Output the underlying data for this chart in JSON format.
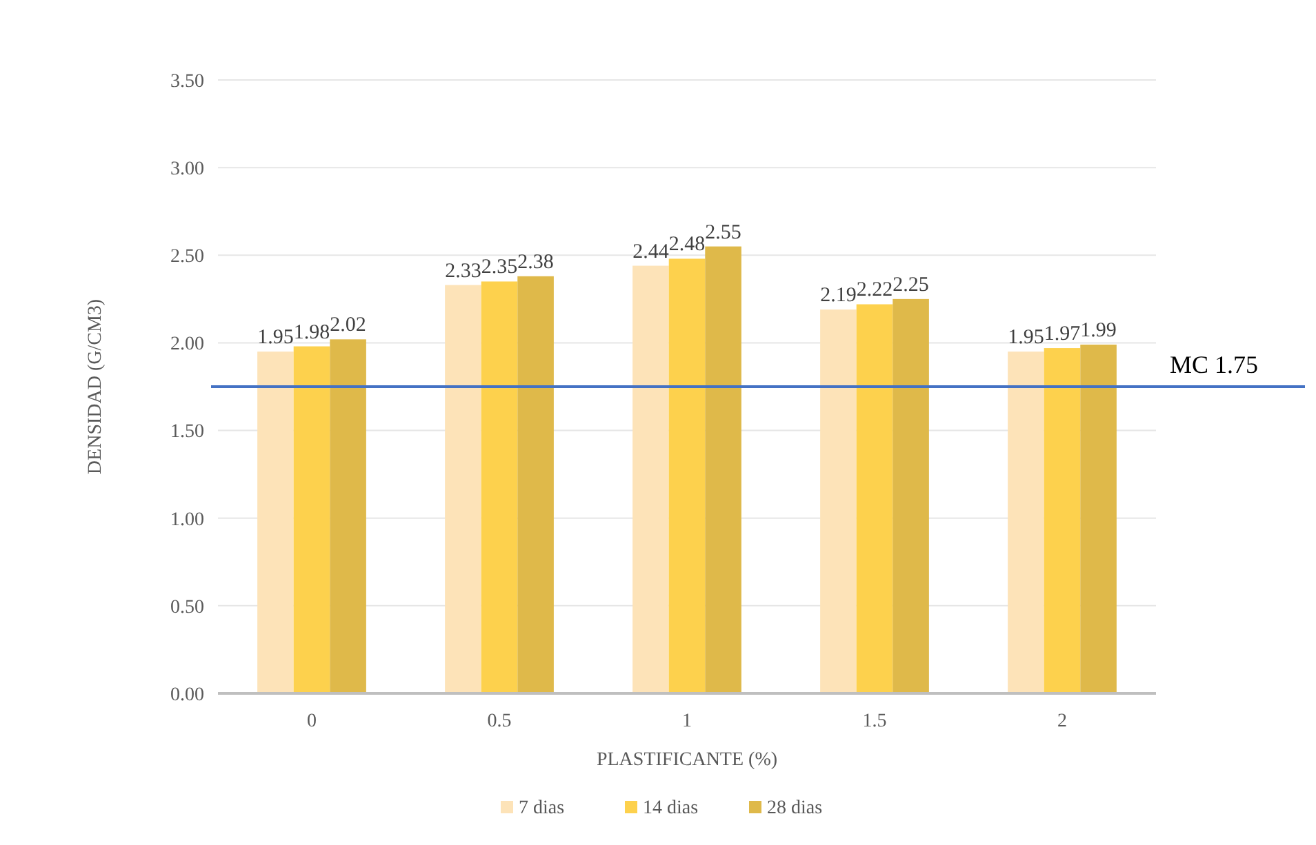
{
  "chart_data": {
    "type": "bar",
    "xlabel": "PLASTIFICANTE (%)",
    "ylabel": "DENSIDAD (G/CM3)",
    "categories": [
      "0",
      "0.5",
      "1",
      "1.5",
      "2"
    ],
    "series": [
      {
        "name": "7 dias",
        "color": "#fde3b8",
        "values": [
          1.95,
          2.33,
          2.44,
          2.19,
          1.95
        ]
      },
      {
        "name": "14 dias",
        "color": "#fdd14d",
        "values": [
          1.98,
          2.35,
          2.48,
          2.22,
          1.97
        ]
      },
      {
        "name": "28 dias",
        "color": "#dfb94a",
        "values": [
          2.02,
          2.38,
          2.55,
          2.25,
          1.99
        ]
      }
    ],
    "ylim": [
      0,
      3.5
    ],
    "yticks": [
      {
        "value": 0,
        "label": "0.00"
      },
      {
        "value": 0.5,
        "label": "0.50"
      },
      {
        "value": 1,
        "label": "1.00"
      },
      {
        "value": 1.5,
        "label": "1.50"
      },
      {
        "value": 2,
        "label": "2.00"
      },
      {
        "value": 2.5,
        "label": "2.50"
      },
      {
        "value": 3,
        "label": "3.00"
      },
      {
        "value": 3.5,
        "label": "3.50"
      }
    ],
    "grid": "y",
    "legend": "bottom",
    "data_labels": true,
    "ref_lines": [
      {
        "axis": "y",
        "value": 1.75,
        "label": "MC 1.75",
        "color": "#4472c4"
      }
    ]
  }
}
